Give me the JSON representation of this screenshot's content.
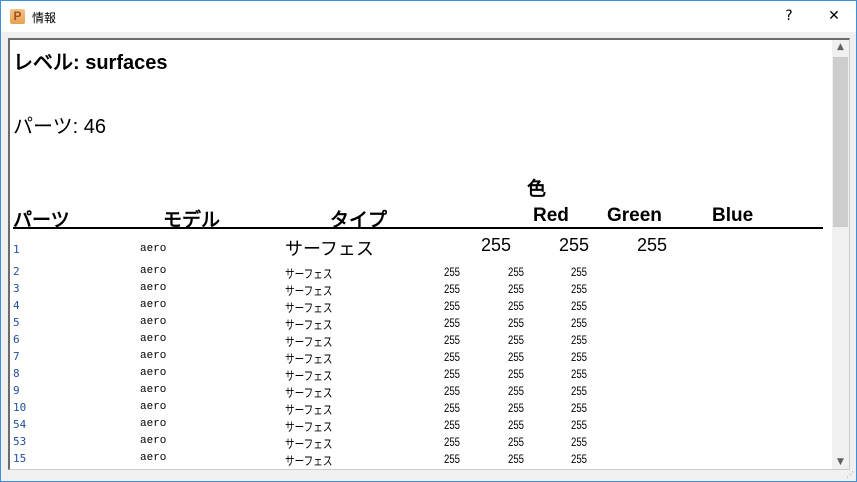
{
  "window": {
    "title": "情報",
    "help": "?",
    "close": "✕",
    "icon": "P"
  },
  "level": "レベル: surfaces",
  "parts_count": "パーツ: 46",
  "headers": {
    "color_group": "色",
    "part": "パーツ",
    "model": "モデル",
    "type": "タイプ",
    "red": "Red",
    "green": "Green",
    "blue": "Blue"
  },
  "rows": [
    {
      "part": "1",
      "model": "aero",
      "type": "サーフェス",
      "r": "255",
      "g": "255",
      "b": "255"
    },
    {
      "part": "2",
      "model": "aero",
      "type": "サーフェス",
      "r": "255",
      "g": "255",
      "b": "255"
    },
    {
      "part": "3",
      "model": "aero",
      "type": "サーフェス",
      "r": "255",
      "g": "255",
      "b": "255"
    },
    {
      "part": "4",
      "model": "aero",
      "type": "サーフェス",
      "r": "255",
      "g": "255",
      "b": "255"
    },
    {
      "part": "5",
      "model": "aero",
      "type": "サーフェス",
      "r": "255",
      "g": "255",
      "b": "255"
    },
    {
      "part": "6",
      "model": "aero",
      "type": "サーフェス",
      "r": "255",
      "g": "255",
      "b": "255"
    },
    {
      "part": "7",
      "model": "aero",
      "type": "サーフェス",
      "r": "255",
      "g": "255",
      "b": "255"
    },
    {
      "part": "8",
      "model": "aero",
      "type": "サーフェス",
      "r": "255",
      "g": "255",
      "b": "255"
    },
    {
      "part": "9",
      "model": "aero",
      "type": "サーフェス",
      "r": "255",
      "g": "255",
      "b": "255"
    },
    {
      "part": "10",
      "model": "aero",
      "type": "サーフェス",
      "r": "255",
      "g": "255",
      "b": "255"
    },
    {
      "part": "54",
      "model": "aero",
      "type": "サーフェス",
      "r": "255",
      "g": "255",
      "b": "255"
    },
    {
      "part": "53",
      "model": "aero",
      "type": "サーフェス",
      "r": "255",
      "g": "255",
      "b": "255"
    },
    {
      "part": "15",
      "model": "aero",
      "type": "サーフェス",
      "r": "255",
      "g": "255",
      "b": "255"
    }
  ]
}
